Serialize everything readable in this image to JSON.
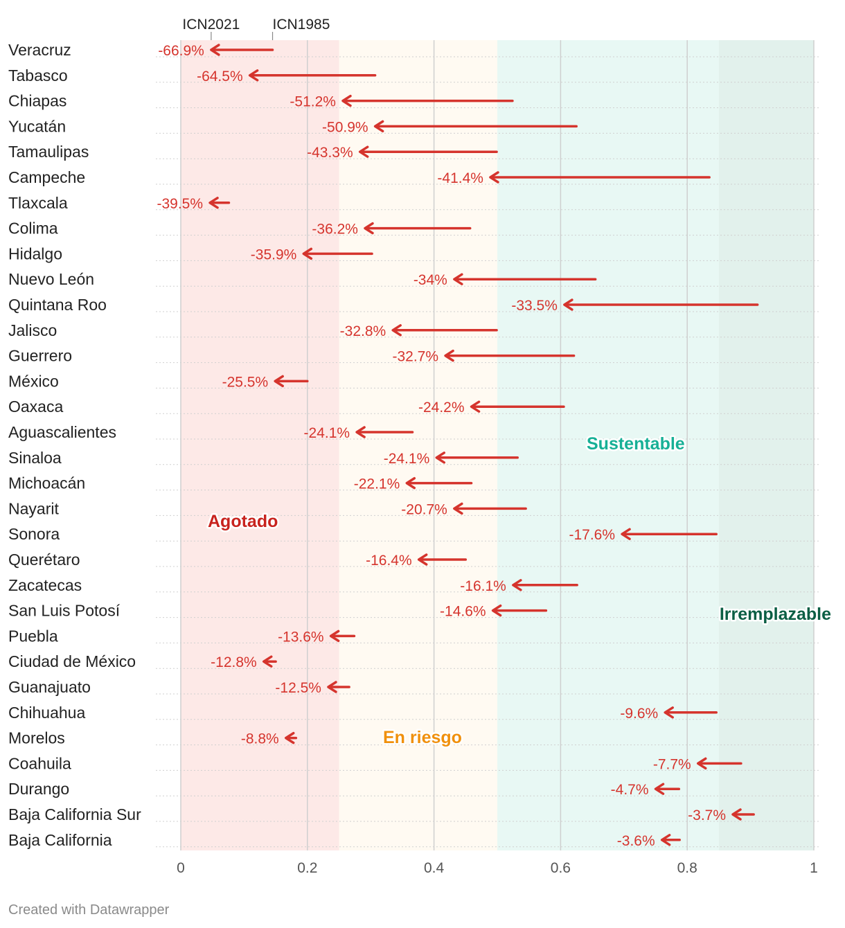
{
  "chart_data": {
    "type": "arrow",
    "title": "",
    "xlabel": "",
    "ylabel": "",
    "xlim": [
      0,
      1
    ],
    "x_ticks": [
      "0",
      "0.2",
      "0.4",
      "0.6",
      "0.8",
      "1"
    ],
    "legend": {
      "start": "ICN1985",
      "end": "ICN2021"
    },
    "zones": [
      {
        "name": "Agotado",
        "from": 0,
        "to": 0.25,
        "color": "#fde9e7",
        "label_color": "#c8231e"
      },
      {
        "name": "En riesgo",
        "from": 0.25,
        "to": 0.5,
        "color": "#fffaf2",
        "label_color": "#f0900c"
      },
      {
        "name": "Sustentable",
        "from": 0.5,
        "to": 0.85,
        "color": "#e8f8f4",
        "label_color": "#17b096"
      },
      {
        "name": "Irremplazable",
        "from": 0.85,
        "to": 1.0,
        "color": "#e2f1ec",
        "label_color": "#0b5e44"
      }
    ],
    "series": [
      {
        "state": "Veracruz",
        "icn1985": 0.145,
        "icn2021": 0.048,
        "change": "-66.9%"
      },
      {
        "state": "Tabasco",
        "icn1985": 0.307,
        "icn2021": 0.109,
        "change": "-64.5%"
      },
      {
        "state": "Chiapas",
        "icn1985": 0.524,
        "icn2021": 0.256,
        "change": "-51.2%"
      },
      {
        "state": "Yucatán",
        "icn1985": 0.625,
        "icn2021": 0.307,
        "change": "-50.9%"
      },
      {
        "state": "Tamaulipas",
        "icn1985": 0.499,
        "icn2021": 0.283,
        "change": "-43.3%"
      },
      {
        "state": "Campeche",
        "icn1985": 0.835,
        "icn2021": 0.489,
        "change": "-41.4%"
      },
      {
        "state": "Tlaxcala",
        "icn1985": 0.076,
        "icn2021": 0.046,
        "change": "-39.5%"
      },
      {
        "state": "Colima",
        "icn1985": 0.457,
        "icn2021": 0.291,
        "change": "-36.2%"
      },
      {
        "state": "Hidalgo",
        "icn1985": 0.302,
        "icn2021": 0.194,
        "change": "-35.9%"
      },
      {
        "state": "Nuevo León",
        "icn1985": 0.655,
        "icn2021": 0.432,
        "change": "-34%"
      },
      {
        "state": "Quintana Roo",
        "icn1985": 0.911,
        "icn2021": 0.606,
        "change": "-33.5%"
      },
      {
        "state": "Jalisco",
        "icn1985": 0.499,
        "icn2021": 0.335,
        "change": "-32.8%"
      },
      {
        "state": "Guerrero",
        "icn1985": 0.621,
        "icn2021": 0.418,
        "change": "-32.7%"
      },
      {
        "state": "México",
        "icn1985": 0.2,
        "icn2021": 0.149,
        "change": "-25.5%"
      },
      {
        "state": "Oaxaca",
        "icn1985": 0.605,
        "icn2021": 0.459,
        "change": "-24.2%"
      },
      {
        "state": "Aguascalientes",
        "icn1985": 0.366,
        "icn2021": 0.278,
        "change": "-24.1%"
      },
      {
        "state": "Sinaloa",
        "icn1985": 0.532,
        "icn2021": 0.404,
        "change": "-24.1%"
      },
      {
        "state": "Michoacán",
        "icn1985": 0.459,
        "icn2021": 0.357,
        "change": "-22.1%"
      },
      {
        "state": "Nayarit",
        "icn1985": 0.545,
        "icn2021": 0.432,
        "change": "-20.7%"
      },
      {
        "state": "Sonora",
        "icn1985": 0.846,
        "icn2021": 0.697,
        "change": "-17.6%"
      },
      {
        "state": "Querétaro",
        "icn1985": 0.45,
        "icn2021": 0.376,
        "change": "-16.4%"
      },
      {
        "state": "Zacatecas",
        "icn1985": 0.626,
        "icn2021": 0.525,
        "change": "-16.1%"
      },
      {
        "state": "San Luis Potosí",
        "icn1985": 0.577,
        "icn2021": 0.493,
        "change": "-14.6%"
      },
      {
        "state": "Puebla",
        "icn1985": 0.274,
        "icn2021": 0.237,
        "change": "-13.6%"
      },
      {
        "state": "Ciudad de México",
        "icn1985": 0.15,
        "icn2021": 0.131,
        "change": "-12.8%"
      },
      {
        "state": "Guanajuato",
        "icn1985": 0.266,
        "icn2021": 0.233,
        "change": "-12.5%"
      },
      {
        "state": "Chihuahua",
        "icn1985": 0.846,
        "icn2021": 0.765,
        "change": "-9.6%"
      },
      {
        "state": "Morelos",
        "icn1985": 0.182,
        "icn2021": 0.166,
        "change": "-8.8%"
      },
      {
        "state": "Coahuila",
        "icn1985": 0.885,
        "icn2021": 0.817,
        "change": "-7.7%"
      },
      {
        "state": "Durango",
        "icn1985": 0.787,
        "icn2021": 0.75,
        "change": "-4.7%"
      },
      {
        "state": "Baja California Sur",
        "icn1985": 0.905,
        "icn2021": 0.872,
        "change": "-3.7%"
      },
      {
        "state": "Baja California",
        "icn1985": 0.788,
        "icn2021": 0.76,
        "change": "-3.6%"
      }
    ],
    "arrow_color": "#d5342d"
  },
  "footer": {
    "credit": "Created with Datawrapper"
  }
}
